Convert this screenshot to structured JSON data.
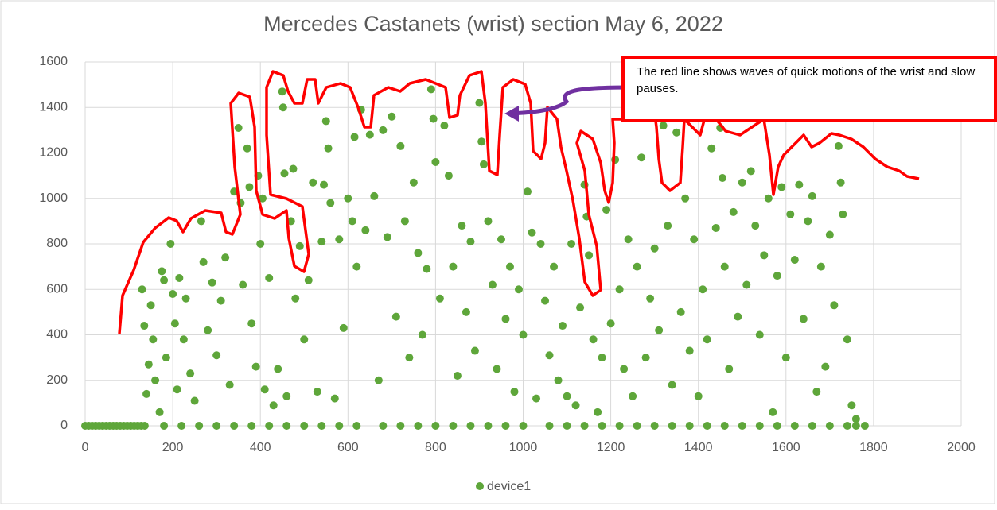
{
  "chart_data": {
    "type": "scatter",
    "title": "Mercedes Castanets (wrist) section May 6, 2022",
    "annotation": "The red line shows waves of quick motions of the wrist and slow pauses.",
    "xlim": [
      0,
      2000
    ],
    "xticks": [
      0,
      200,
      400,
      600,
      800,
      1000,
      1200,
      1400,
      1600,
      1800,
      2000
    ],
    "ylim": [
      0,
      1600
    ],
    "yticks": [
      0,
      200,
      400,
      600,
      800,
      1000,
      1200,
      1400,
      1600
    ],
    "grid": true,
    "legend": "bottom",
    "series": [
      {
        "name": "device1",
        "color": "#5ea63a",
        "x": [
          0,
          8,
          16,
          24,
          32,
          40,
          48,
          56,
          64,
          72,
          80,
          88,
          96,
          104,
          112,
          120,
          128,
          136,
          180,
          220,
          260,
          300,
          340,
          380,
          420,
          460,
          500,
          540,
          580,
          620,
          680,
          720,
          760,
          800,
          840,
          880,
          920,
          960,
          1000,
          1060,
          1100,
          1140,
          1180,
          1220,
          1260,
          1300,
          1340,
          1380,
          1420,
          1460,
          1500,
          1540,
          1580,
          1620,
          1660,
          1700,
          1740,
          1760,
          1780,
          130,
          135,
          140,
          145,
          150,
          155,
          160,
          170,
          175,
          180,
          185,
          195,
          200,
          205,
          210,
          215,
          225,
          230,
          240,
          250,
          265,
          270,
          280,
          290,
          300,
          310,
          320,
          330,
          340,
          350,
          355,
          360,
          370,
          375,
          380,
          390,
          395,
          400,
          405,
          410,
          420,
          430,
          440,
          450,
          452,
          455,
          460,
          470,
          475,
          480,
          490,
          500,
          510,
          520,
          530,
          540,
          545,
          550,
          555,
          560,
          570,
          580,
          590,
          600,
          610,
          615,
          620,
          630,
          640,
          650,
          660,
          670,
          680,
          690,
          700,
          710,
          720,
          730,
          740,
          750,
          760,
          770,
          780,
          790,
          795,
          800,
          810,
          820,
          830,
          840,
          850,
          860,
          870,
          880,
          890,
          900,
          905,
          910,
          920,
          930,
          940,
          950,
          960,
          970,
          980,
          990,
          1000,
          1010,
          1020,
          1030,
          1040,
          1050,
          1060,
          1070,
          1080,
          1090,
          1100,
          1110,
          1120,
          1130,
          1140,
          1145,
          1150,
          1160,
          1170,
          1180,
          1190,
          1200,
          1210,
          1220,
          1230,
          1240,
          1250,
          1260,
          1270,
          1280,
          1290,
          1300,
          1310,
          1320,
          1330,
          1340,
          1350,
          1360,
          1370,
          1380,
          1390,
          1400,
          1410,
          1420,
          1430,
          1440,
          1450,
          1455,
          1460,
          1470,
          1480,
          1490,
          1500,
          1510,
          1520,
          1530,
          1540,
          1550,
          1560,
          1570,
          1580,
          1590,
          1600,
          1610,
          1620,
          1630,
          1640,
          1650,
          1660,
          1670,
          1680,
          1690,
          1700,
          1710,
          1720,
          1725,
          1730,
          1740,
          1750,
          1760
        ],
        "values": [
          0,
          0,
          0,
          0,
          0,
          0,
          0,
          0,
          0,
          0,
          0,
          0,
          0,
          0,
          0,
          0,
          0,
          0,
          0,
          0,
          0,
          0,
          0,
          0,
          0,
          0,
          0,
          0,
          0,
          0,
          0,
          0,
          0,
          0,
          0,
          0,
          0,
          0,
          0,
          0,
          0,
          0,
          0,
          0,
          0,
          0,
          0,
          0,
          0,
          0,
          0,
          0,
          0,
          0,
          0,
          0,
          0,
          0,
          0,
          600,
          440,
          140,
          270,
          530,
          380,
          200,
          60,
          680,
          640,
          300,
          800,
          580,
          450,
          160,
          650,
          380,
          560,
          230,
          110,
          900,
          720,
          420,
          630,
          310,
          550,
          740,
          180,
          1030,
          1310,
          980,
          620,
          1220,
          1050,
          450,
          260,
          1100,
          800,
          1000,
          160,
          650,
          90,
          250,
          1470,
          1400,
          1110,
          130,
          900,
          1130,
          560,
          790,
          380,
          640,
          1070,
          150,
          810,
          1060,
          1340,
          1220,
          980,
          120,
          820,
          430,
          1000,
          900,
          1270,
          700,
          1390,
          860,
          1280,
          1010,
          200,
          1300,
          830,
          1360,
          480,
          1230,
          900,
          300,
          1070,
          760,
          400,
          690,
          1480,
          1350,
          1160,
          560,
          1320,
          1100,
          700,
          220,
          880,
          500,
          810,
          330,
          1420,
          1250,
          1150,
          900,
          620,
          250,
          820,
          470,
          700,
          150,
          600,
          400,
          1030,
          850,
          120,
          800,
          550,
          310,
          700,
          200,
          440,
          130,
          800,
          90,
          520,
          1060,
          920,
          750,
          380,
          60,
          300,
          950,
          450,
          1170,
          600,
          250,
          820,
          130,
          700,
          1180,
          300,
          560,
          780,
          420,
          1320,
          880,
          180,
          1290,
          500,
          1000,
          330,
          820,
          130,
          600,
          380,
          1220,
          870,
          1310,
          1090,
          700,
          250,
          940,
          480,
          1070,
          620,
          1120,
          880,
          400,
          750,
          1000,
          60,
          660,
          1050,
          300,
          930,
          730,
          1060,
          470,
          900,
          1010,
          150,
          700,
          260,
          840,
          530,
          1230,
          1070,
          930,
          380,
          90,
          30
        ]
      }
    ]
  }
}
